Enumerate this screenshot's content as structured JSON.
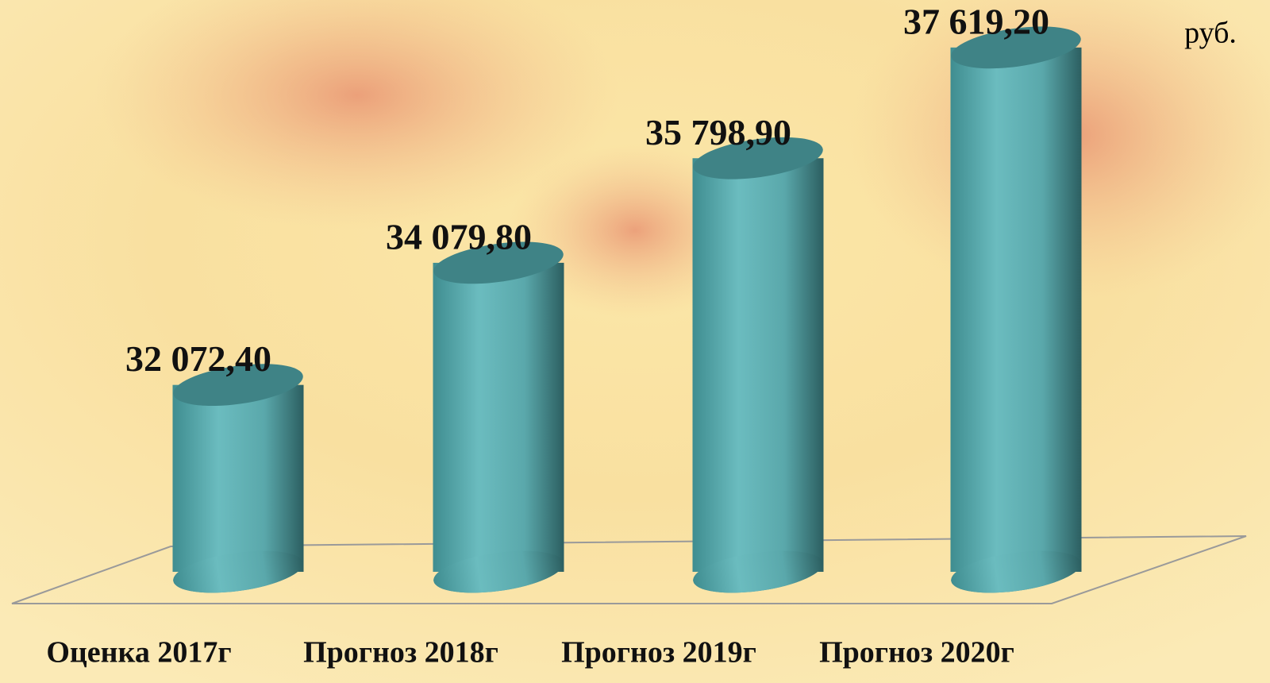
{
  "chart_data": {
    "type": "bar",
    "unit": "руб.",
    "categories": [
      "Оценка 2017г",
      "Прогноз 2018г",
      "Прогноз 2019г",
      "Прогноз 2020г"
    ],
    "values": [
      32072.4,
      34079.8,
      35798.9,
      37619.2
    ],
    "value_labels": [
      "32 072,40",
      "34 079,80",
      "35 798,90",
      "37 619,20"
    ],
    "color": "#5fb0b3",
    "ylim": [
      29000,
      38400
    ]
  }
}
